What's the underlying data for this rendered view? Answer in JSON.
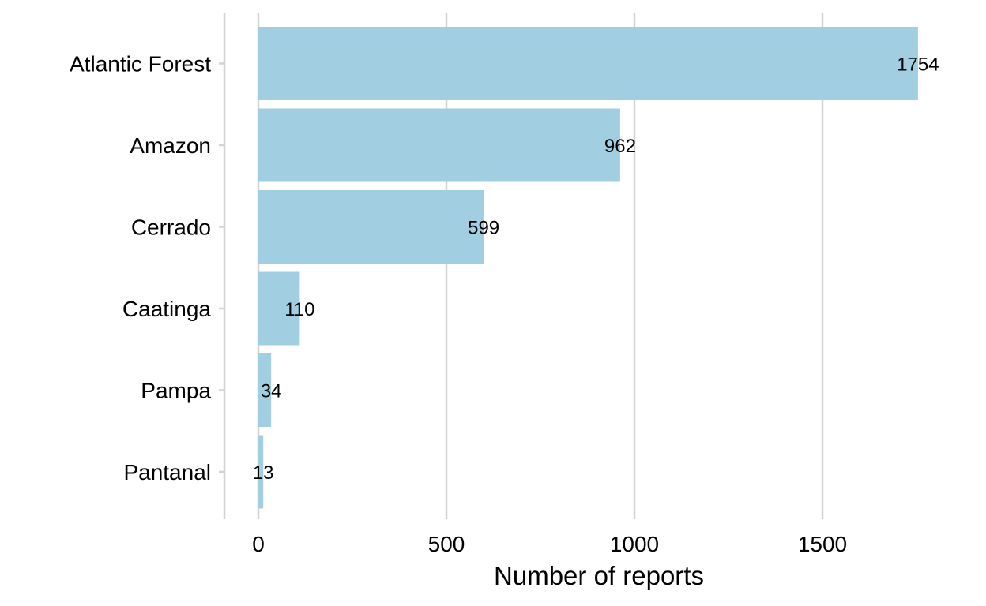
{
  "chart_data": {
    "type": "bar",
    "orientation": "horizontal",
    "categories": [
      "Atlantic Forest",
      "Amazon",
      "Cerrado",
      "Caatinga",
      "Pampa",
      "Pantanal"
    ],
    "values": [
      1754,
      962,
      599,
      110,
      34,
      13
    ],
    "data_labels": [
      "1754",
      "962",
      "599",
      "110",
      "34",
      "13"
    ],
    "xlabel": "Number of reports",
    "ylabel": "",
    "xlim": [
      -90,
      1880
    ],
    "xticks": [
      0,
      500,
      1000,
      1500
    ],
    "xtick_labels": [
      "0",
      "500",
      "1000",
      "1500"
    ],
    "grid": "vertical major gridlines",
    "legend": "none",
    "bar_color": "#a1cfe1",
    "grid_color": "#d3d3d3"
  }
}
